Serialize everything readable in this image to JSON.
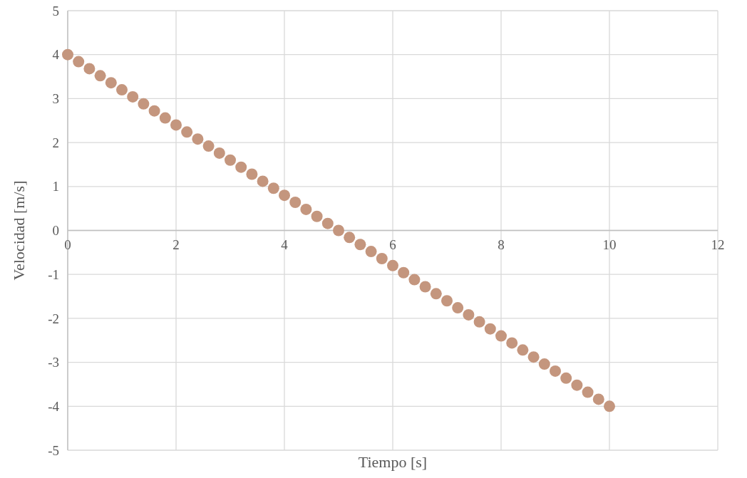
{
  "chart_data": {
    "type": "scatter",
    "xlabel": "Tiempo [s]",
    "ylabel": "Velocidad [m/s]",
    "x": [
      0,
      0.2,
      0.4,
      0.6,
      0.8,
      1,
      1.2,
      1.4,
      1.6,
      1.8,
      2,
      2.2,
      2.4,
      2.6,
      2.8,
      3,
      3.2,
      3.4,
      3.6,
      3.8,
      4,
      4.2,
      4.4,
      4.6,
      4.8,
      5,
      5.2,
      5.4,
      5.6,
      5.8,
      6,
      6.2,
      6.4,
      6.6,
      6.8,
      7,
      7.2,
      7.4,
      7.6,
      7.8,
      8,
      8.2,
      8.4,
      8.6,
      8.8,
      9,
      9.2,
      9.4,
      9.6,
      9.8,
      10
    ],
    "series": [
      {
        "color": "#c4967e",
        "values": [
          4,
          3.84,
          3.68,
          3.52,
          3.36,
          3.2,
          3.04,
          2.88,
          2.72,
          2.56,
          2.4,
          2.24,
          2.08,
          1.92,
          1.76,
          1.6,
          1.44,
          1.28,
          1.12,
          0.96,
          0.8,
          0.64,
          0.48,
          0.32,
          0.16,
          0,
          -0.16,
          -0.32,
          -0.48,
          -0.64,
          -0.8,
          -0.96,
          -1.12,
          -1.28,
          -1.44,
          -1.6,
          -1.76,
          -1.92,
          -2.08,
          -2.24,
          -2.4,
          -2.56,
          -2.72,
          -2.88,
          -3.04,
          -3.2,
          -3.36,
          -3.52,
          -3.68,
          -3.84,
          -4
        ]
      }
    ],
    "xlim": [
      0,
      12
    ],
    "xticks": [
      0,
      2,
      4,
      6,
      8,
      10,
      12
    ],
    "ylim": [
      -5,
      5
    ],
    "yticks": [
      -5,
      -4,
      -3,
      -2,
      -1,
      0,
      1,
      2,
      3,
      4,
      5
    ],
    "grid": true,
    "marker": "circle"
  }
}
